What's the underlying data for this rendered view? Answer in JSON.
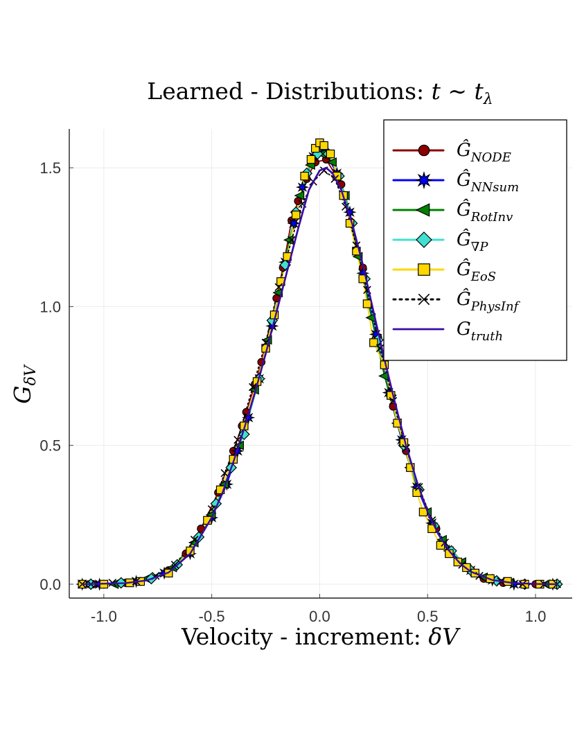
{
  "chart_data": {
    "type": "line",
    "title": "Learned - Distributions: ",
    "title_math": "t ∼ t",
    "title_math_sub": "λ",
    "xlabel": "Velocity - increment: ",
    "xlabel_math": "δV",
    "ylabel": "G",
    "ylabel_sub": "δV",
    "xlim": [
      -1.16,
      1.17
    ],
    "ylim": [
      -0.05,
      1.64
    ],
    "xticks": [
      {
        "value": -1.0,
        "label": "-1.0"
      },
      {
        "value": -0.5,
        "label": "-0.5"
      },
      {
        "value": 0.0,
        "label": "0.0"
      },
      {
        "value": 0.5,
        "label": "0.5"
      },
      {
        "value": 1.0,
        "label": "1.0"
      }
    ],
    "yticks": [
      {
        "value": 0.0,
        "label": "0.0"
      },
      {
        "value": 0.5,
        "label": "0.5"
      },
      {
        "value": 1.0,
        "label": "1.0"
      },
      {
        "value": 1.5,
        "label": "1.5"
      }
    ],
    "grid": true,
    "legend_position": "top-right",
    "series": [
      {
        "key": "node",
        "name": "Ĝ",
        "sub": "NODE",
        "color": "#8b0000",
        "line": "solid",
        "marker": "circle",
        "points": [
          [
            -1.1,
            0.0
          ],
          [
            -1.05,
            0.0
          ],
          [
            -0.9,
            0.005
          ],
          [
            -0.78,
            0.02
          ],
          [
            -0.7,
            0.05
          ],
          [
            -0.62,
            0.11
          ],
          [
            -0.55,
            0.2
          ],
          [
            -0.47,
            0.33
          ],
          [
            -0.4,
            0.48
          ],
          [
            -0.36,
            0.57
          ],
          [
            -0.34,
            0.62
          ],
          [
            -0.3,
            0.72
          ],
          [
            -0.27,
            0.8
          ],
          [
            -0.2,
            1.03
          ],
          [
            -0.17,
            1.14
          ],
          [
            -0.13,
            1.31
          ],
          [
            -0.1,
            1.38
          ],
          [
            -0.06,
            1.46
          ],
          [
            -0.02,
            1.52
          ],
          [
            0.03,
            1.53
          ],
          [
            0.1,
            1.44
          ],
          [
            0.15,
            1.3
          ],
          [
            0.2,
            1.14
          ],
          [
            0.27,
            0.89
          ],
          [
            0.34,
            0.64
          ],
          [
            0.4,
            0.48
          ],
          [
            0.46,
            0.34
          ],
          [
            0.54,
            0.2
          ],
          [
            0.6,
            0.12
          ],
          [
            0.68,
            0.06
          ],
          [
            0.76,
            0.02
          ],
          [
            0.85,
            0.005
          ],
          [
            1.0,
            0.0
          ],
          [
            1.1,
            0.0
          ]
        ]
      },
      {
        "key": "nnsum",
        "name": "Ĝ",
        "sub": "NNsum",
        "color": "#0000ff",
        "line": "solid",
        "marker": "star",
        "points": [
          [
            -1.1,
            0.0
          ],
          [
            -1.02,
            0.0
          ],
          [
            -0.85,
            0.01
          ],
          [
            -0.72,
            0.04
          ],
          [
            -0.6,
            0.11
          ],
          [
            -0.5,
            0.24
          ],
          [
            -0.43,
            0.36
          ],
          [
            -0.38,
            0.48
          ],
          [
            -0.33,
            0.6
          ],
          [
            -0.28,
            0.74
          ],
          [
            -0.22,
            0.93
          ],
          [
            -0.16,
            1.16
          ],
          [
            -0.12,
            1.3
          ],
          [
            -0.08,
            1.43
          ],
          [
            -0.03,
            1.54
          ],
          [
            0.02,
            1.56
          ],
          [
            0.08,
            1.48
          ],
          [
            0.14,
            1.34
          ],
          [
            0.2,
            1.12
          ],
          [
            0.26,
            0.9
          ],
          [
            0.32,
            0.69
          ],
          [
            0.38,
            0.52
          ],
          [
            0.45,
            0.35
          ],
          [
            0.52,
            0.22
          ],
          [
            0.6,
            0.12
          ],
          [
            0.7,
            0.05
          ],
          [
            0.8,
            0.015
          ],
          [
            0.9,
            0.0
          ],
          [
            1.08,
            0.0
          ]
        ]
      },
      {
        "key": "rotinv",
        "name": "Ĝ",
        "sub": "RotInv",
        "color": "#008000",
        "line": "solid",
        "marker": "triangle",
        "points": [
          [
            -1.08,
            0.0
          ],
          [
            -0.95,
            0.0
          ],
          [
            -0.8,
            0.02
          ],
          [
            -0.68,
            0.06
          ],
          [
            -0.58,
            0.15
          ],
          [
            -0.5,
            0.25
          ],
          [
            -0.44,
            0.36
          ],
          [
            -0.37,
            0.5
          ],
          [
            -0.3,
            0.7
          ],
          [
            -0.24,
            0.88
          ],
          [
            -0.19,
            1.05
          ],
          [
            -0.14,
            1.24
          ],
          [
            -0.09,
            1.4
          ],
          [
            -0.04,
            1.51
          ],
          [
            0.01,
            1.55
          ],
          [
            0.06,
            1.52
          ],
          [
            0.12,
            1.4
          ],
          [
            0.18,
            1.18
          ],
          [
            0.24,
            0.96
          ],
          [
            0.3,
            0.75
          ],
          [
            0.36,
            0.58
          ],
          [
            0.42,
            0.42
          ],
          [
            0.5,
            0.26
          ],
          [
            0.57,
            0.16
          ],
          [
            0.66,
            0.08
          ],
          [
            0.76,
            0.025
          ],
          [
            0.88,
            0.005
          ],
          [
            1.05,
            0.0
          ]
        ]
      },
      {
        "key": "gradp",
        "name": "Ĝ",
        "sub": "∇P",
        "color": "#40e0d0",
        "line": "solid",
        "marker": "diamond",
        "points": [
          [
            -1.06,
            0.0
          ],
          [
            -0.92,
            0.005
          ],
          [
            -0.78,
            0.02
          ],
          [
            -0.66,
            0.07
          ],
          [
            -0.56,
            0.17
          ],
          [
            -0.48,
            0.29
          ],
          [
            -0.41,
            0.42
          ],
          [
            -0.35,
            0.54
          ],
          [
            -0.28,
            0.74
          ],
          [
            -0.22,
            0.95
          ],
          [
            -0.16,
            1.15
          ],
          [
            -0.11,
            1.34
          ],
          [
            -0.06,
            1.48
          ],
          [
            -0.01,
            1.55
          ],
          [
            0.04,
            1.55
          ],
          [
            0.09,
            1.47
          ],
          [
            0.15,
            1.3
          ],
          [
            0.21,
            1.1
          ],
          [
            0.27,
            0.88
          ],
          [
            0.33,
            0.68
          ],
          [
            0.39,
            0.5
          ],
          [
            0.46,
            0.34
          ],
          [
            0.53,
            0.21
          ],
          [
            0.61,
            0.12
          ],
          [
            0.7,
            0.05
          ],
          [
            0.82,
            0.012
          ],
          [
            0.95,
            0.0
          ],
          [
            1.1,
            0.0
          ]
        ]
      },
      {
        "key": "eos",
        "name": "Ĝ",
        "sub": "EoS",
        "color": "#ffd700",
        "line": "solid",
        "marker": "square",
        "points": [
          [
            -1.1,
            0.0
          ],
          [
            -1.0,
            0.0
          ],
          [
            -0.88,
            0.005
          ],
          [
            -0.83,
            0.01
          ],
          [
            -0.7,
            0.04
          ],
          [
            -0.6,
            0.12
          ],
          [
            -0.52,
            0.23
          ],
          [
            -0.46,
            0.34
          ],
          [
            -0.4,
            0.45
          ],
          [
            -0.35,
            0.57
          ],
          [
            -0.29,
            0.73
          ],
          [
            -0.25,
            0.85
          ],
          [
            -0.21,
            0.97
          ],
          [
            -0.18,
            1.09
          ],
          [
            -0.15,
            1.18
          ],
          [
            -0.11,
            1.33
          ],
          [
            -0.07,
            1.47
          ],
          [
            -0.04,
            1.53
          ],
          [
            -0.02,
            1.57
          ],
          [
            0.0,
            1.59
          ],
          [
            0.02,
            1.58
          ],
          [
            0.05,
            1.55
          ],
          [
            0.08,
            1.47
          ],
          [
            0.11,
            1.4
          ],
          [
            0.14,
            1.3
          ],
          [
            0.17,
            1.2
          ],
          [
            0.2,
            1.1
          ],
          [
            0.22,
            1.01
          ],
          [
            0.25,
            0.87
          ],
          [
            0.3,
            0.79
          ],
          [
            0.33,
            0.68
          ],
          [
            0.36,
            0.58
          ],
          [
            0.39,
            0.51
          ],
          [
            0.42,
            0.42
          ],
          [
            0.45,
            0.33
          ],
          [
            0.48,
            0.26
          ],
          [
            0.52,
            0.2
          ],
          [
            0.56,
            0.14
          ],
          [
            0.6,
            0.11
          ],
          [
            0.64,
            0.08
          ],
          [
            0.68,
            0.06
          ],
          [
            0.72,
            0.04
          ],
          [
            0.79,
            0.02
          ],
          [
            0.87,
            0.01
          ],
          [
            0.95,
            0.0
          ],
          [
            1.02,
            0.0
          ],
          [
            1.08,
            0.0
          ]
        ]
      },
      {
        "key": "physinf",
        "name": "Ĝ",
        "sub": "PhysInf",
        "color": "#000000",
        "line": "dotted",
        "marker": "x",
        "points": [
          [
            -1.1,
            0.0
          ],
          [
            -1.06,
            0.0
          ],
          [
            -0.96,
            0.005
          ],
          [
            -0.85,
            0.01
          ],
          [
            -0.76,
            0.03
          ],
          [
            -0.67,
            0.07
          ],
          [
            -0.58,
            0.16
          ],
          [
            -0.5,
            0.27
          ],
          [
            -0.44,
            0.4
          ],
          [
            -0.38,
            0.52
          ],
          [
            -0.31,
            0.71
          ],
          [
            -0.25,
            0.87
          ],
          [
            -0.19,
            1.07
          ],
          [
            -0.13,
            1.24
          ],
          [
            -0.08,
            1.37
          ],
          [
            -0.03,
            1.45
          ],
          [
            0.02,
            1.49
          ],
          [
            0.07,
            1.46
          ],
          [
            0.12,
            1.36
          ],
          [
            0.17,
            1.22
          ],
          [
            0.22,
            1.06
          ],
          [
            0.28,
            0.85
          ],
          [
            0.34,
            0.66
          ],
          [
            0.4,
            0.49
          ],
          [
            0.46,
            0.35
          ],
          [
            0.52,
            0.23
          ],
          [
            0.58,
            0.15
          ],
          [
            0.66,
            0.07
          ],
          [
            0.74,
            0.03
          ],
          [
            0.84,
            0.01
          ],
          [
            0.94,
            0.0
          ],
          [
            1.04,
            0.0
          ],
          [
            1.1,
            0.0
          ]
        ]
      }
    ],
    "truth": {
      "key": "truth",
      "name": "G",
      "sub": "truth",
      "color": "#3a0ca3",
      "line": "solid",
      "marker": "none",
      "points": [
        [
          -1.1,
          0.0
        ],
        [
          -0.9,
          0.004
        ],
        [
          -0.8,
          0.014
        ],
        [
          -0.7,
          0.042
        ],
        [
          -0.6,
          0.11
        ],
        [
          -0.5,
          0.24
        ],
        [
          -0.45,
          0.33
        ],
        [
          -0.4,
          0.44
        ],
        [
          -0.35,
          0.56
        ],
        [
          -0.3,
          0.69
        ],
        [
          -0.25,
          0.83
        ],
        [
          -0.2,
          0.98
        ],
        [
          -0.15,
          1.13
        ],
        [
          -0.1,
          1.28
        ],
        [
          -0.05,
          1.42
        ],
        [
          0.0,
          1.49
        ],
        [
          0.03,
          1.5
        ],
        [
          0.06,
          1.48
        ],
        [
          0.1,
          1.42
        ],
        [
          0.15,
          1.3
        ],
        [
          0.2,
          1.15
        ],
        [
          0.25,
          0.98
        ],
        [
          0.3,
          0.81
        ],
        [
          0.35,
          0.65
        ],
        [
          0.4,
          0.5
        ],
        [
          0.45,
          0.37
        ],
        [
          0.5,
          0.26
        ],
        [
          0.55,
          0.18
        ],
        [
          0.6,
          0.12
        ],
        [
          0.65,
          0.075
        ],
        [
          0.7,
          0.045
        ],
        [
          0.8,
          0.015
        ],
        [
          0.9,
          0.004
        ],
        [
          1.0,
          0.001
        ],
        [
          1.1,
          0.0
        ]
      ]
    }
  }
}
